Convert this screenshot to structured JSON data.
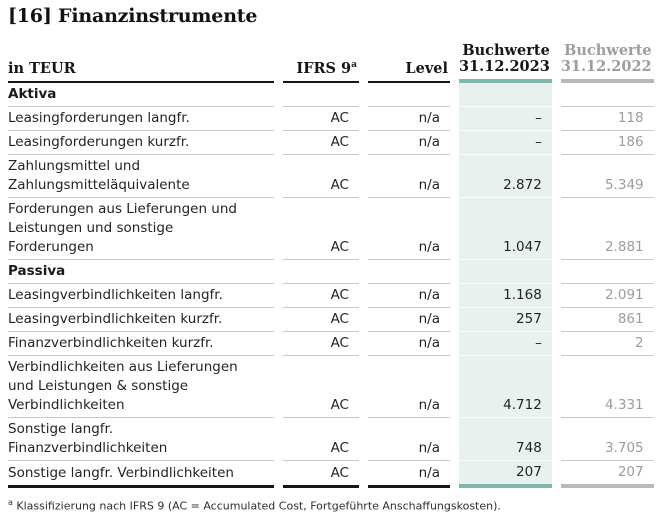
{
  "title": "[16] Finanzinstrumente",
  "table": {
    "columns": [
      {
        "label": "in TEUR"
      },
      {
        "label": "IFRS 9",
        "sup": "a"
      },
      {
        "label": "Level"
      },
      {
        "label": "Buchwerte",
        "label2": "31.12.2023"
      },
      {
        "label": "Buchwerte",
        "label2": "31.12.2022"
      }
    ],
    "rows": [
      {
        "type": "section",
        "label": "Aktiva",
        "ifrs9": "",
        "level": "",
        "v2023": "",
        "v2022": ""
      },
      {
        "type": "data",
        "label": "Leasingforderungen langfr.",
        "ifrs9": "AC",
        "level": "n/a",
        "v2023": "–",
        "v2022": "118"
      },
      {
        "type": "data",
        "label": "Leasingforderungen kurzfr.",
        "ifrs9": "AC",
        "level": "n/a",
        "v2023": "–",
        "v2022": "186"
      },
      {
        "type": "data",
        "label": "Zahlungsmittel und\nZahlungsmitteläquivalente",
        "ifrs9": "AC",
        "level": "n/a",
        "v2023": "2.872",
        "v2022": "5.349"
      },
      {
        "type": "data",
        "label": "Forderungen aus Lieferungen und\nLeistungen und sonstige\nForderungen",
        "ifrs9": "AC",
        "level": "n/a",
        "v2023": "1.047",
        "v2022": "2.881"
      },
      {
        "type": "section",
        "label": "Passiva",
        "ifrs9": "",
        "level": "",
        "v2023": "",
        "v2022": ""
      },
      {
        "type": "data",
        "label": "Leasingverbindlichkeiten langfr.",
        "ifrs9": "AC",
        "level": "n/a",
        "v2023": "1.168",
        "v2022": "2.091"
      },
      {
        "type": "data",
        "label": "Leasingverbindlichkeiten kurzfr.",
        "ifrs9": "AC",
        "level": "n/a",
        "v2023": "257",
        "v2022": "861"
      },
      {
        "type": "data",
        "label": "Finanzverbindlichkeiten kurzfr.",
        "ifrs9": "AC",
        "level": "n/a",
        "v2023": "–",
        "v2022": "2"
      },
      {
        "type": "data",
        "label": "Verbindlichkeiten aus Lieferungen\nund Leistungen & sonstige\nVerbindlichkeiten",
        "ifrs9": "AC",
        "level": "n/a",
        "v2023": "4.712",
        "v2022": "4.331"
      },
      {
        "type": "data",
        "label": "Sonstige langfr.\nFinanzverbindlichkeiten",
        "ifrs9": "AC",
        "level": "n/a",
        "v2023": "748",
        "v2022": "3.705"
      },
      {
        "type": "data",
        "label": "Sonstige langfr. Verbindlichkeiten",
        "ifrs9": "AC",
        "level": "n/a",
        "v2023": "207",
        "v2022": "207"
      }
    ]
  },
  "footnote": {
    "sup": "a",
    "text": "Klassifizierung nach IFRS 9 (AC = Accumulated Cost, Fortgeführte Anschaffungskosten)."
  },
  "colors": {
    "accent_teal": "#7fb7ae",
    "teal_column_bg": "#e9f1ef",
    "gray_bar": "#b9b9b9",
    "gray_text": "#9c9c9c",
    "separator": "#c8c8c8",
    "ink": "#161616"
  }
}
